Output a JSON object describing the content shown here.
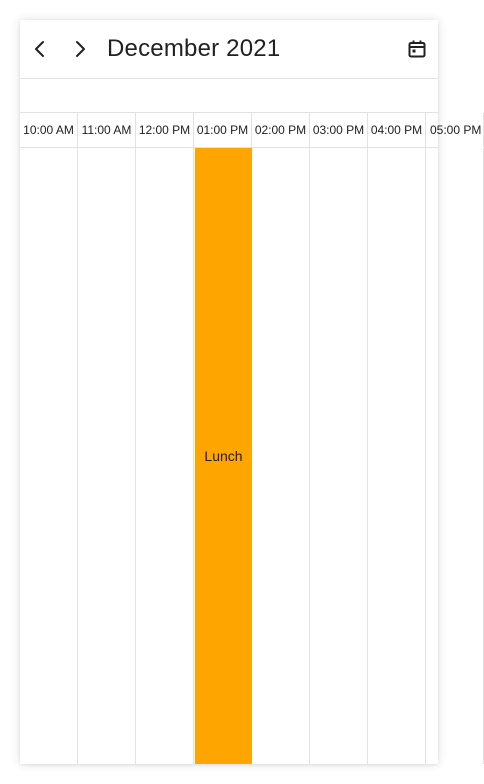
{
  "header": {
    "title": "December 2021",
    "prev_icon": "chevron-left-icon",
    "next_icon": "chevron-right-icon",
    "today_icon": "calendar-today-icon"
  },
  "timeline": {
    "time_slots": [
      "10:00 AM",
      "11:00 AM",
      "12:00 PM",
      "01:00 PM",
      "02:00 PM",
      "03:00 PM",
      "04:00 PM",
      "05:00 PM"
    ]
  },
  "appointments": [
    {
      "subject": "Lunch",
      "start": "01:00 PM",
      "color": "#ffa500"
    }
  ],
  "colors": {
    "border": "#e2e2e2",
    "text": "#212121",
    "appointment": "#ffa500"
  }
}
